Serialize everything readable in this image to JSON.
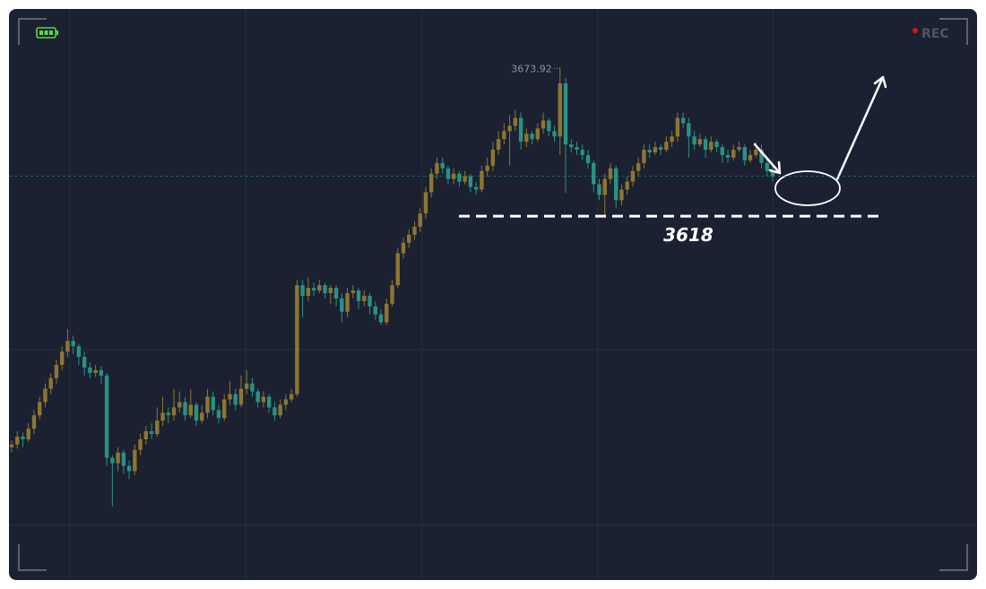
{
  "chart_data": {
    "type": "candlestick",
    "ylim": [
      3481,
      3696
    ],
    "up_color": "#8d7632",
    "down_color": "#2a9184",
    "support_level": 3618,
    "recording_label": "REC",
    "ohlc": [
      [
        3531,
        3533.5,
        3529,
        3532
      ],
      [
        3532,
        3537,
        3530.5,
        3535
      ],
      [
        3535,
        3536.5,
        3531,
        3534
      ],
      [
        3534,
        3540,
        3533,
        3538
      ],
      [
        3538,
        3545,
        3536,
        3543
      ],
      [
        3543,
        3550,
        3541.5,
        3548
      ],
      [
        3548,
        3555,
        3546,
        3553
      ],
      [
        3553,
        3559,
        3551,
        3557
      ],
      [
        3557,
        3564,
        3555,
        3562
      ],
      [
        3562,
        3569,
        3560,
        3567
      ],
      [
        3567,
        3575.5,
        3565,
        3571
      ],
      [
        3571,
        3573,
        3566,
        3569
      ],
      [
        3569,
        3570,
        3562,
        3565
      ],
      [
        3565,
        3567,
        3558,
        3561
      ],
      [
        3561,
        3563,
        3557,
        3559
      ],
      [
        3559,
        3562,
        3557.5,
        3560
      ],
      [
        3560,
        3561.5,
        3555,
        3558
      ],
      [
        3558,
        3559,
        3524,
        3527
      ],
      [
        3527,
        3528,
        3508.7,
        3525
      ],
      [
        3525,
        3531,
        3522,
        3529
      ],
      [
        3529,
        3530,
        3521,
        3524
      ],
      [
        3524,
        3526,
        3519,
        3522
      ],
      [
        3522,
        3532,
        3520.5,
        3530
      ],
      [
        3530,
        3536,
        3528,
        3534
      ],
      [
        3534,
        3539,
        3532,
        3537
      ],
      [
        3537,
        3540,
        3534,
        3536
      ],
      [
        3536,
        3546,
        3535,
        3541
      ],
      [
        3541,
        3550,
        3539,
        3544
      ],
      [
        3544,
        3546,
        3540,
        3543
      ],
      [
        3543,
        3553,
        3541,
        3546
      ],
      [
        3546,
        3552,
        3544,
        3548
      ],
      [
        3548,
        3550,
        3541,
        3543
      ],
      [
        3543,
        3553,
        3542,
        3547
      ],
      [
        3547,
        3548,
        3539,
        3541
      ],
      [
        3541,
        3547,
        3540,
        3544
      ],
      [
        3544,
        3553,
        3542,
        3550
      ],
      [
        3550,
        3552,
        3543,
        3545
      ],
      [
        3545,
        3547,
        3540,
        3542
      ],
      [
        3542,
        3551,
        3541,
        3549
      ],
      [
        3549,
        3556,
        3547,
        3551
      ],
      [
        3551,
        3553,
        3545,
        3547
      ],
      [
        3547,
        3558,
        3546,
        3553
      ],
      [
        3553,
        3560,
        3551,
        3555
      ],
      [
        3555,
        3557,
        3550,
        3552
      ],
      [
        3552,
        3553,
        3546,
        3548
      ],
      [
        3548,
        3552,
        3546,
        3550
      ],
      [
        3550,
        3551,
        3544,
        3546
      ],
      [
        3546,
        3548,
        3541,
        3543
      ],
      [
        3543,
        3549,
        3542,
        3547
      ],
      [
        3547,
        3551,
        3545,
        3549
      ],
      [
        3549,
        3553,
        3548,
        3551
      ],
      [
        3551,
        3594,
        3550,
        3592
      ],
      [
        3592,
        3594,
        3580,
        3588
      ],
      [
        3588,
        3595,
        3586,
        3591
      ],
      [
        3591,
        3593,
        3588,
        3590
      ],
      [
        3590,
        3594,
        3589,
        3592
      ],
      [
        3592,
        3593,
        3587,
        3589
      ],
      [
        3589,
        3592,
        3585,
        3591
      ],
      [
        3591,
        3592,
        3584,
        3587
      ],
      [
        3587,
        3589,
        3578,
        3582
      ],
      [
        3582,
        3591,
        3580,
        3589
      ],
      [
        3589,
        3592,
        3587,
        3590
      ],
      [
        3590,
        3591,
        3583,
        3586
      ],
      [
        3586,
        3590,
        3584,
        3588
      ],
      [
        3588,
        3589,
        3581,
        3584
      ],
      [
        3584,
        3586,
        3579,
        3581
      ],
      [
        3581,
        3583,
        3577,
        3578
      ],
      [
        3578,
        3587,
        3577,
        3585
      ],
      [
        3585,
        3594,
        3584,
        3592
      ],
      [
        3592,
        3606,
        3591,
        3604
      ],
      [
        3604,
        3610,
        3602,
        3608
      ],
      [
        3608,
        3613,
        3606,
        3611
      ],
      [
        3611,
        3616,
        3609,
        3614
      ],
      [
        3614,
        3621,
        3612,
        3619
      ],
      [
        3619,
        3629,
        3617,
        3627
      ],
      [
        3627,
        3636,
        3625,
        3634
      ],
      [
        3634,
        3640,
        3632,
        3638
      ],
      [
        3638,
        3640,
        3634,
        3636
      ],
      [
        3636,
        3637,
        3630,
        3632
      ],
      [
        3632,
        3636,
        3630,
        3634
      ],
      [
        3634,
        3635,
        3629,
        3631
      ],
      [
        3631,
        3635,
        3630,
        3633
      ],
      [
        3633,
        3634,
        3627,
        3629
      ],
      [
        3629,
        3631,
        3626,
        3628
      ],
      [
        3628,
        3637,
        3627,
        3635
      ],
      [
        3635,
        3640,
        3633,
        3637
      ],
      [
        3637,
        3646,
        3635,
        3643
      ],
      [
        3643,
        3650,
        3641,
        3647
      ],
      [
        3647,
        3653,
        3645,
        3650
      ],
      [
        3650,
        3656,
        3637,
        3652
      ],
      [
        3652,
        3658,
        3650,
        3655
      ],
      [
        3655,
        3657,
        3643,
        3646
      ],
      [
        3646,
        3651,
        3644,
        3649
      ],
      [
        3649,
        3650,
        3645,
        3647
      ],
      [
        3647,
        3653,
        3646,
        3651
      ],
      [
        3651,
        3657,
        3649,
        3654
      ],
      [
        3654,
        3655,
        3648,
        3650
      ],
      [
        3650,
        3652,
        3646,
        3648
      ],
      [
        3648,
        3673.92,
        3641,
        3668
      ],
      [
        3668,
        3670,
        3626.8,
        3645
      ],
      [
        3645,
        3647,
        3642,
        3644
      ],
      [
        3644,
        3646,
        3641,
        3643
      ],
      [
        3643,
        3645,
        3639,
        3641
      ],
      [
        3641,
        3643,
        3636,
        3638
      ],
      [
        3638,
        3639,
        3627,
        3630
      ],
      [
        3630,
        3632,
        3624,
        3626
      ],
      [
        3626,
        3634,
        3618.4,
        3632
      ],
      [
        3632,
        3638,
        3630,
        3636
      ],
      [
        3636,
        3637,
        3621,
        3624
      ],
      [
        3624,
        3630,
        3622,
        3628
      ],
      [
        3628,
        3633,
        3626,
        3631
      ],
      [
        3631,
        3637,
        3629,
        3635
      ],
      [
        3635,
        3640,
        3633,
        3638
      ],
      [
        3638,
        3645,
        3636,
        3643
      ],
      [
        3643,
        3645,
        3640,
        3642
      ],
      [
        3642,
        3646,
        3641,
        3644
      ],
      [
        3644,
        3645,
        3641,
        3643
      ],
      [
        3643,
        3648,
        3642,
        3646
      ],
      [
        3646,
        3650,
        3644,
        3648
      ],
      [
        3648,
        3657,
        3646,
        3655
      ],
      [
        3655,
        3657,
        3651,
        3653
      ],
      [
        3653,
        3655,
        3640,
        3648
      ],
      [
        3648,
        3650,
        3643,
        3645
      ],
      [
        3645,
        3649,
        3644,
        3647
      ],
      [
        3647,
        3648,
        3640,
        3643
      ],
      [
        3643,
        3648,
        3642,
        3646
      ],
      [
        3646,
        3647,
        3642,
        3644
      ],
      [
        3644,
        3645,
        3638,
        3641
      ],
      [
        3641,
        3643,
        3638,
        3640
      ],
      [
        3640,
        3645,
        3639,
        3643
      ],
      [
        3643,
        3646,
        3642,
        3644
      ],
      [
        3644,
        3645,
        3637,
        3639
      ],
      [
        3639,
        3643,
        3638,
        3641
      ],
      [
        3641,
        3646,
        3640,
        3643
      ],
      [
        3643,
        3645,
        3636,
        3638
      ],
      [
        3638,
        3640,
        3633,
        3635
      ],
      [
        3635,
        3637,
        3631,
        3633
      ]
    ]
  }
}
